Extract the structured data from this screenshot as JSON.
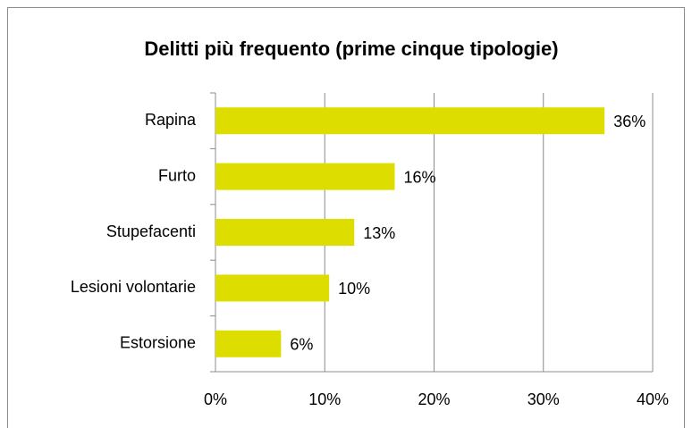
{
  "chart_data": {
    "type": "bar",
    "orientation": "horizontal",
    "title": "Delitti più frequento (prime cinque tipologie)",
    "categories": [
      "Rapina",
      "Furto",
      "Stupefacenti",
      "Lesioni volontarie",
      "Estorsione"
    ],
    "values": [
      35.6,
      16.4,
      12.7,
      10.4,
      6.0
    ],
    "value_labels": [
      "36%",
      "16%",
      "13%",
      "10%",
      "6%"
    ],
    "color": "#dddd00",
    "xlim": [
      0,
      40
    ],
    "xticks": [
      {
        "value": 0,
        "label": "0%"
      },
      {
        "value": 10,
        "label": "10%"
      },
      {
        "value": 20,
        "label": "20%"
      },
      {
        "value": 30,
        "label": "30%"
      },
      {
        "value": 40,
        "label": "40%"
      }
    ],
    "grid": true
  }
}
